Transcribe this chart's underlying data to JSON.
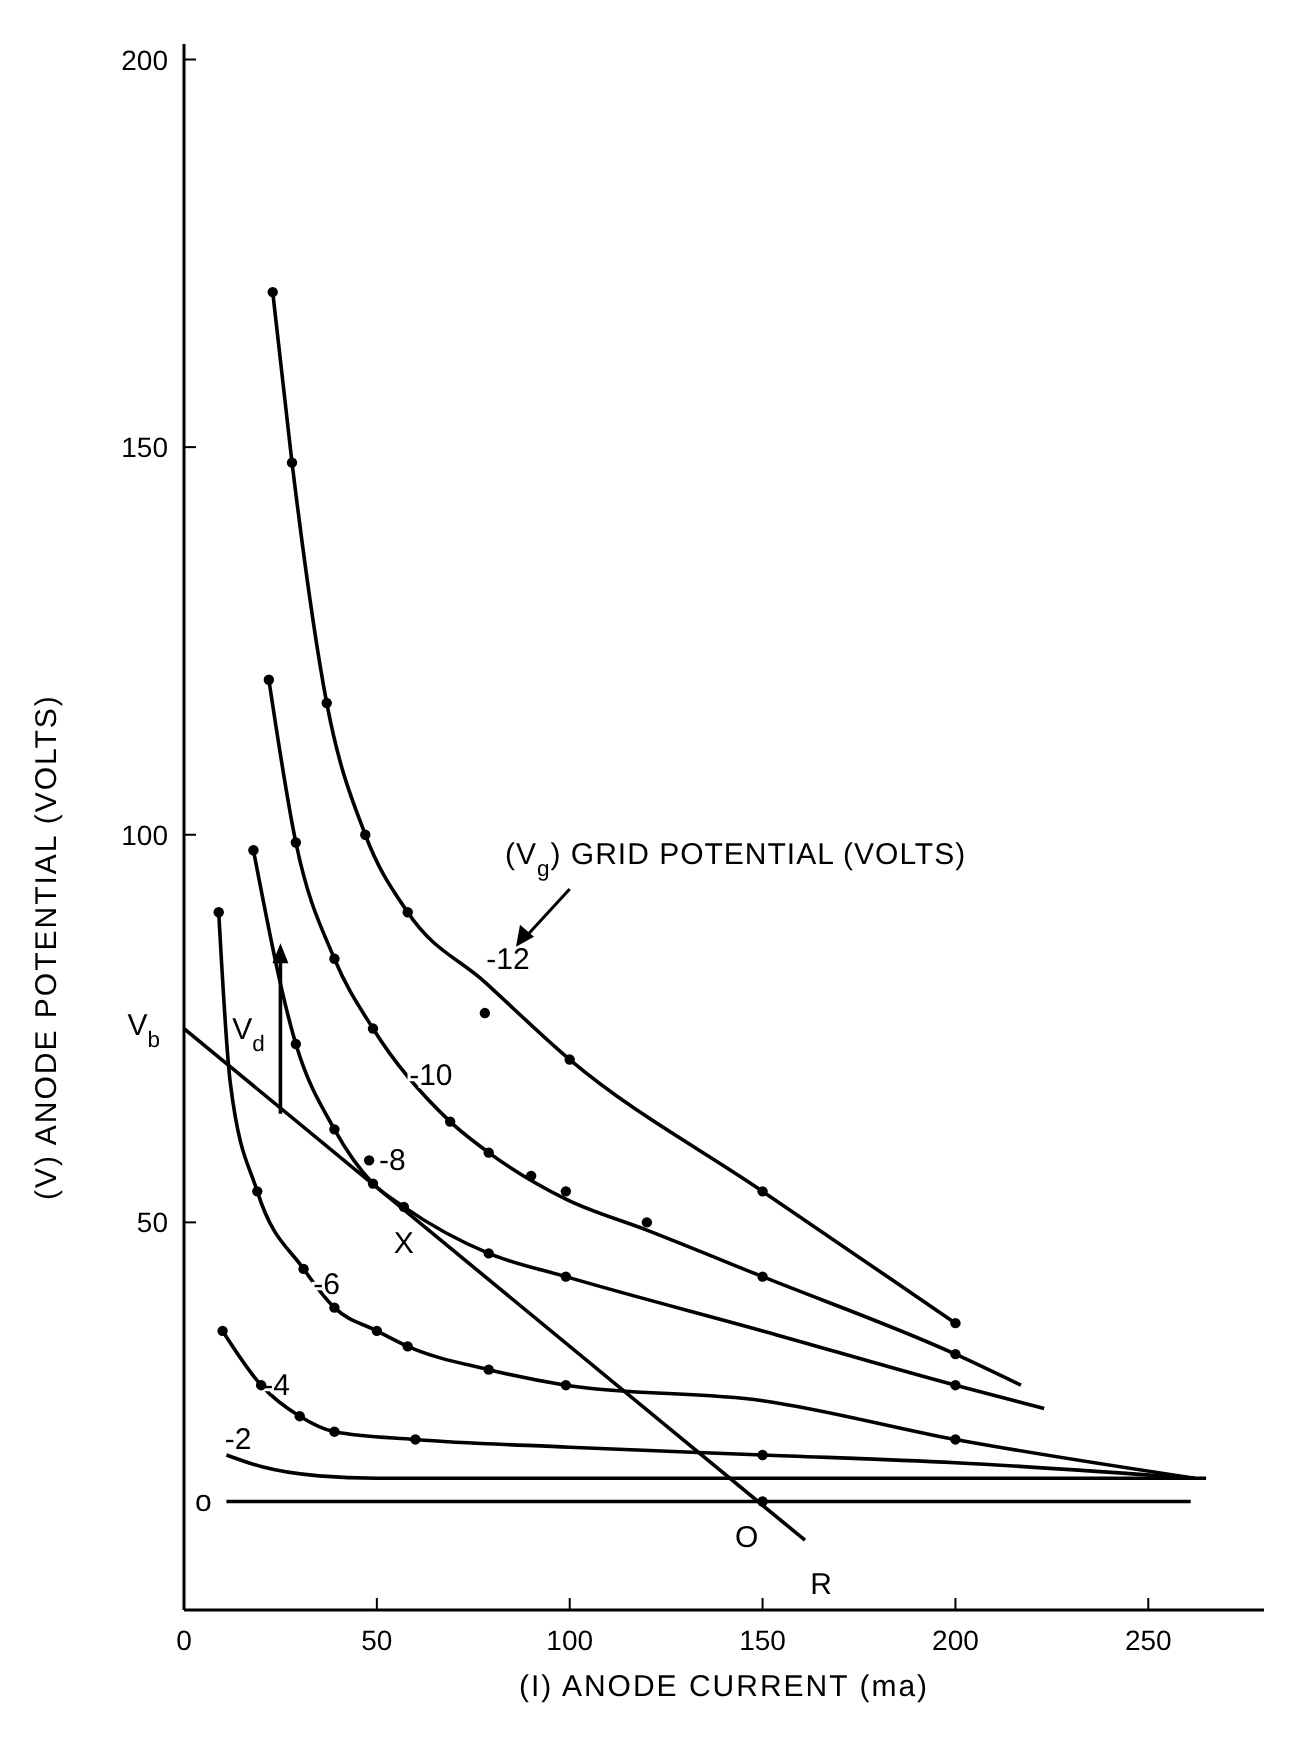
{
  "chart_data": {
    "type": "line",
    "xlabel": "(I) ANODE CURRENT (ma)",
    "ylabel": "(V) ANODE POTENTIAL (VOLTS)",
    "legend_title": "(V$_{g}$) GRID POTENTIAL (VOLTS)",
    "xlim": [
      0,
      280
    ],
    "ylim": [
      0,
      202
    ],
    "xticks": [
      0,
      50,
      100,
      150,
      200,
      250
    ],
    "yticks": [
      50,
      100,
      150,
      200
    ],
    "line_style": "solid",
    "series": [
      {
        "name": "-12",
        "color": "#000000",
        "x": [
          23,
          28,
          37,
          47,
          58,
          78,
          100,
          150,
          200
        ],
        "values": [
          170,
          148,
          117,
          100,
          90,
          81,
          71,
          54,
          37
        ]
      },
      {
        "name": "-10",
        "color": "#000000",
        "x": [
          22,
          29,
          39,
          49,
          69,
          79,
          99,
          120,
          150,
          200,
          217
        ],
        "values": [
          120,
          99,
          84,
          75,
          63,
          59,
          53,
          49,
          43,
          33,
          29
        ]
      },
      {
        "name": "-8",
        "color": "#000000",
        "x": [
          18,
          29,
          39,
          49,
          57,
          79,
          99,
          150,
          200,
          223
        ],
        "values": [
          98,
          73,
          62,
          55,
          52,
          46,
          43,
          36,
          29,
          26
        ]
      },
      {
        "name": "-6",
        "color": "#000000",
        "x": [
          9,
          12,
          19,
          31,
          39,
          50,
          58,
          79,
          99,
          150,
          200,
          262
        ],
        "values": [
          90,
          68,
          54,
          44,
          39,
          36,
          34,
          31,
          29,
          27,
          22,
          17
        ]
      },
      {
        "name": "-4",
        "color": "#000000",
        "x": [
          10,
          20,
          30,
          39,
          60,
          100,
          150,
          200,
          262
        ],
        "values": [
          36,
          29,
          25,
          23,
          22,
          21,
          20,
          19,
          17
        ]
      },
      {
        "name": "-2",
        "color": "#000000",
        "x": [
          11,
          20,
          35,
          50,
          150,
          265
        ],
        "values": [
          20,
          18.5,
          17.3,
          17,
          17,
          17
        ]
      },
      {
        "name": "o",
        "color": "#000000",
        "x": [
          11,
          150,
          261
        ],
        "values": [
          14,
          14,
          14
        ]
      },
      {
        "color": "#000000",
        "x": [
          0,
          161
        ],
        "values": [
          75,
          9
        ]
      },
      {
        "type": "scatter",
        "color": "#000000",
        "x": [
          23,
          28,
          37,
          47,
          58,
          78,
          100,
          150,
          200,
          22,
          29,
          39,
          49,
          69,
          79,
          90,
          99,
          120,
          150,
          200,
          18,
          29,
          39,
          49,
          48,
          79,
          99,
          200,
          9,
          19,
          31,
          39,
          50,
          58,
          79,
          99,
          200,
          10,
          20,
          30,
          39,
          60,
          150,
          57,
          150
        ],
        "values": [
          170,
          148,
          117,
          100,
          90,
          77,
          71,
          54,
          37,
          120,
          99,
          84,
          75,
          63,
          59,
          56,
          54,
          50,
          43,
          33,
          98,
          73,
          62,
          55,
          58,
          46,
          43,
          29,
          90,
          54,
          44,
          39,
          36,
          34,
          31,
          29,
          22,
          36,
          29,
          25,
          23,
          22,
          20,
          52,
          14
        ]
      }
    ],
    "annotations": [
      "V$_{d}$",
      {
        "text": "V$_{b}$",
        "x": 0,
        "y": 75
      },
      {
        "text": "X",
        "x": 57,
        "y": 52
      },
      {
        "text": "O",
        "x": 150,
        "y": 14
      },
      {
        "text": "R",
        "x": 161,
        "y": 9
      }
    ]
  }
}
